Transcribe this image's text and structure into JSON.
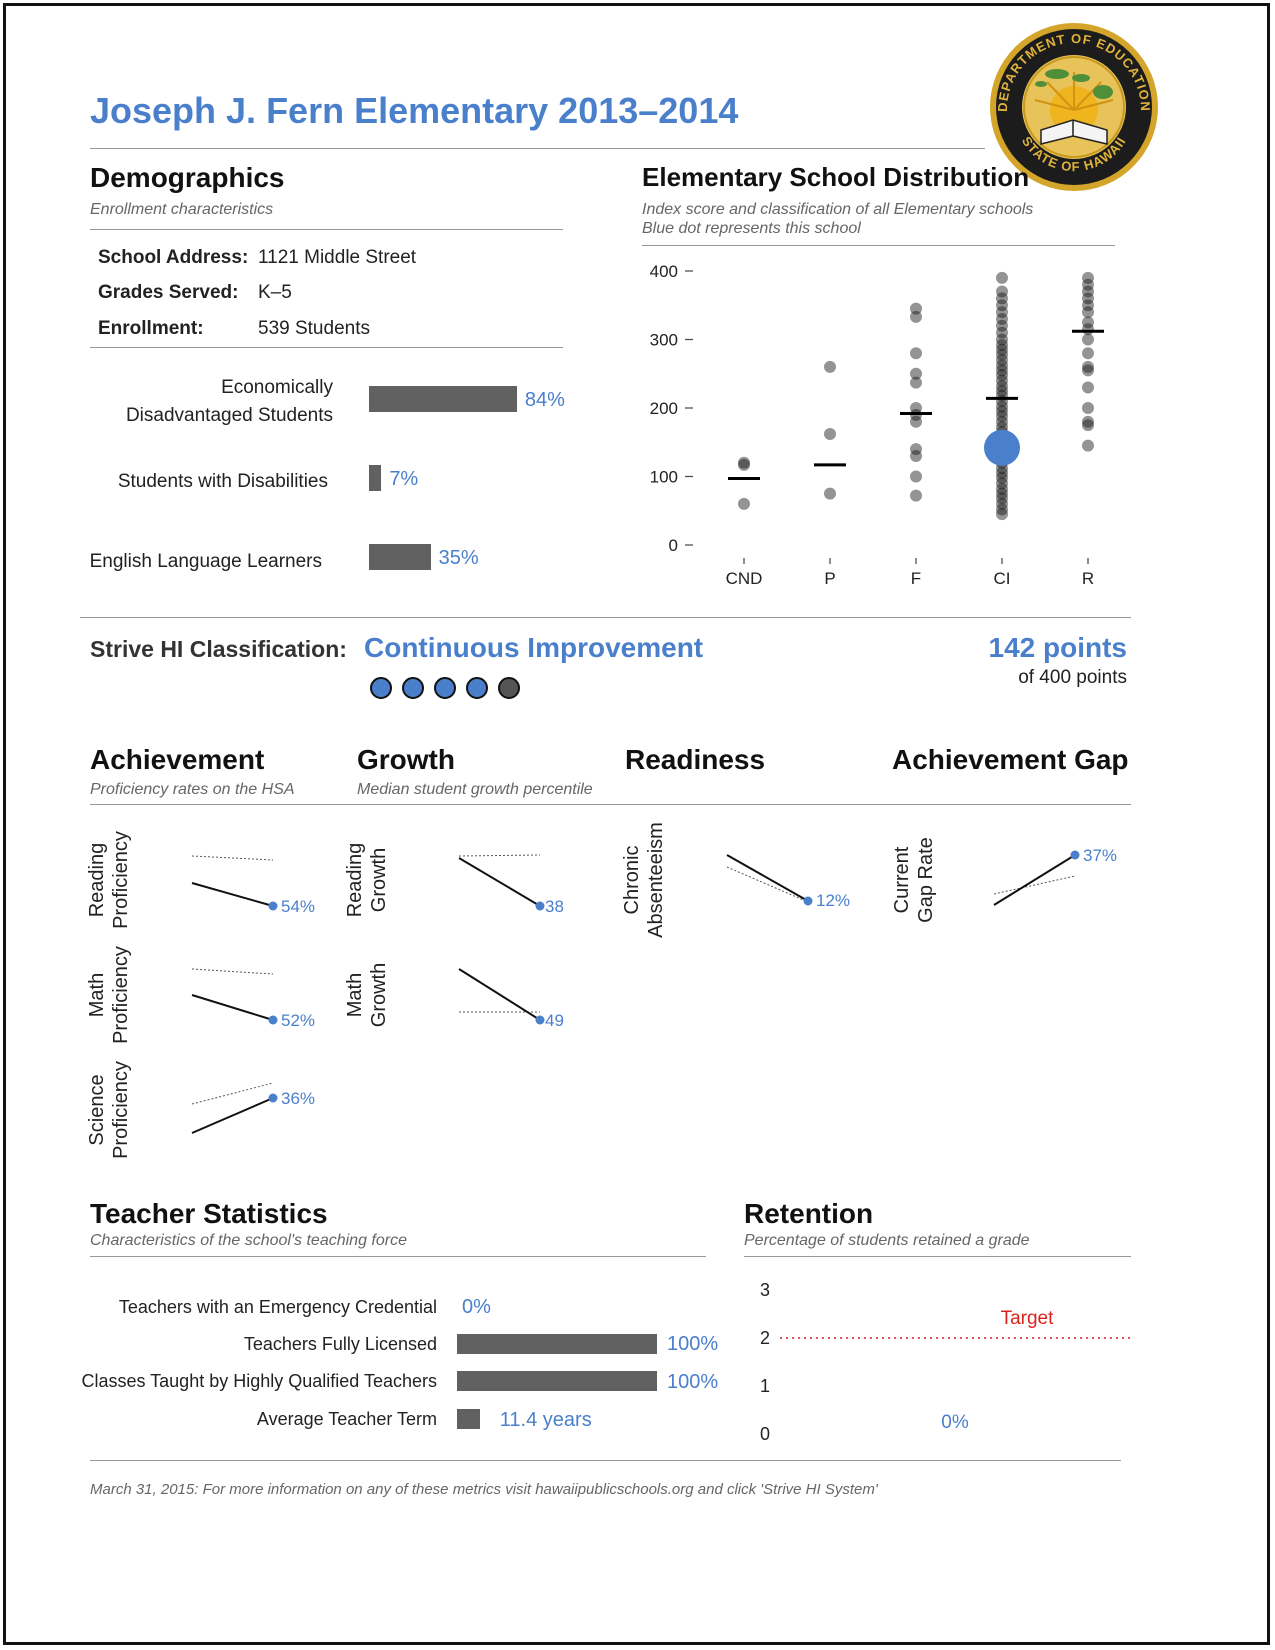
{
  "title": "Joseph J. Fern Elementary 2013–2014",
  "seal": {
    "top": "DEPARTMENT OF EDUCATION",
    "bottom": "STATE OF HAWAII"
  },
  "demographics": {
    "heading": "Demographics",
    "subtitle": "Enrollment characteristics",
    "address_label": "School Address:",
    "address": "1121 Middle Street",
    "grades_label": "Grades Served:",
    "grades": "K–5",
    "enrollment_label": "Enrollment:",
    "enrollment": "539 Students",
    "bars": [
      {
        "label_line1": "Economically",
        "label_line2": "Disadvantaged Students",
        "value": 84,
        "text": "84%"
      },
      {
        "label": "Students with Disabilities",
        "value": 7,
        "text": "7%"
      },
      {
        "label": "English Language Learners",
        "value": 35,
        "text": "35%"
      }
    ]
  },
  "distribution": {
    "heading": "Elementary School Distribution",
    "subtitle1": "Index score and classification of all Elementary schools",
    "subtitle2": "Blue dot represents this school"
  },
  "chart_data": {
    "type": "scatter",
    "title": "Elementary School Distribution",
    "xlabel": "",
    "ylabel": "",
    "ylim": [
      0,
      400
    ],
    "yticks": [
      "0",
      "100",
      "200",
      "300",
      "400"
    ],
    "categories": [
      "CND",
      "P",
      "F",
      "CI",
      "R"
    ],
    "medians": [
      97,
      117,
      192,
      214,
      312
    ],
    "points": {
      "CND": [
        120,
        117,
        60
      ],
      "P": [
        260,
        162,
        75
      ],
      "F": [
        345,
        333,
        280,
        250,
        237,
        200,
        190,
        180,
        140,
        130,
        100,
        72
      ],
      "CI": [
        390,
        370,
        360,
        350,
        340,
        330,
        320,
        310,
        300,
        292,
        285,
        278,
        270,
        262,
        255,
        248,
        240,
        232,
        225,
        218,
        210,
        202,
        195,
        188,
        180,
        172,
        165,
        158,
        150,
        142,
        135,
        128,
        120,
        112,
        105,
        98,
        90,
        82,
        75,
        68,
        60,
        52,
        45
      ],
      "R": [
        390,
        380,
        370,
        360,
        350,
        340,
        325,
        315,
        300,
        280,
        260,
        255,
        230,
        200,
        180,
        175,
        145
      ]
    },
    "highlight": {
      "category": "CI",
      "value": 142,
      "color": "#4a7fcb"
    }
  },
  "classification": {
    "label": "Strive HI Classification:",
    "value": "Continuous Improvement",
    "dots_filled": 4,
    "dots_total": 5,
    "points": "142 points",
    "of_points": "of 400 points"
  },
  "sections": {
    "achievement": {
      "heading": "Achievement",
      "subtitle": "Proficiency rates on the HSA"
    },
    "growth": {
      "heading": "Growth",
      "subtitle": "Median student growth percentile"
    },
    "readiness": {
      "heading": "Readiness"
    },
    "gap": {
      "heading": "Achievement Gap"
    }
  },
  "slopes": {
    "reading_prof": {
      "l1": "Reading",
      "l2": "Proficiency",
      "value": "54%"
    },
    "math_prof": {
      "l1": "Math",
      "l2": "Proficiency",
      "value": "52%"
    },
    "science_prof": {
      "l1": "Science",
      "l2": "Proficiency",
      "value": "36%"
    },
    "reading_growth": {
      "l1": "Reading",
      "l2": "Growth",
      "value": "38"
    },
    "math_growth": {
      "l1": "Math",
      "l2": "Growth",
      "value": "49"
    },
    "absenteeism": {
      "l1": "Chronic",
      "l2": "Absenteeism",
      "value": "12%"
    },
    "gap_rate": {
      "l1": "Current",
      "l2": "Gap Rate",
      "value": "37%"
    }
  },
  "teachers": {
    "heading": "Teacher Statistics",
    "subtitle": "Characteristics of the school's teaching force",
    "rows": [
      {
        "label": "Teachers with an Emergency Credential",
        "value": 0,
        "text": "0%"
      },
      {
        "label": "Teachers Fully Licensed",
        "value": 100,
        "text": "100%"
      },
      {
        "label": "Classes Taught by Highly Qualified Teachers",
        "value": 100,
        "text": "100%"
      },
      {
        "label": "Average Teacher Term",
        "value": 11.4,
        "text": "11.4 years"
      }
    ]
  },
  "retention": {
    "heading": "Retention",
    "subtitle": "Percentage of students retained a grade",
    "yticks": [
      "3",
      "2",
      "1",
      "0"
    ],
    "target_label": "Target",
    "target": 2,
    "value": 0,
    "value_text": "0%",
    "target_color": "#d9231d"
  },
  "footer": "March 31, 2015: For more information on any of these metrics visit hawaiipublicschools.org and click 'Strive HI System'"
}
